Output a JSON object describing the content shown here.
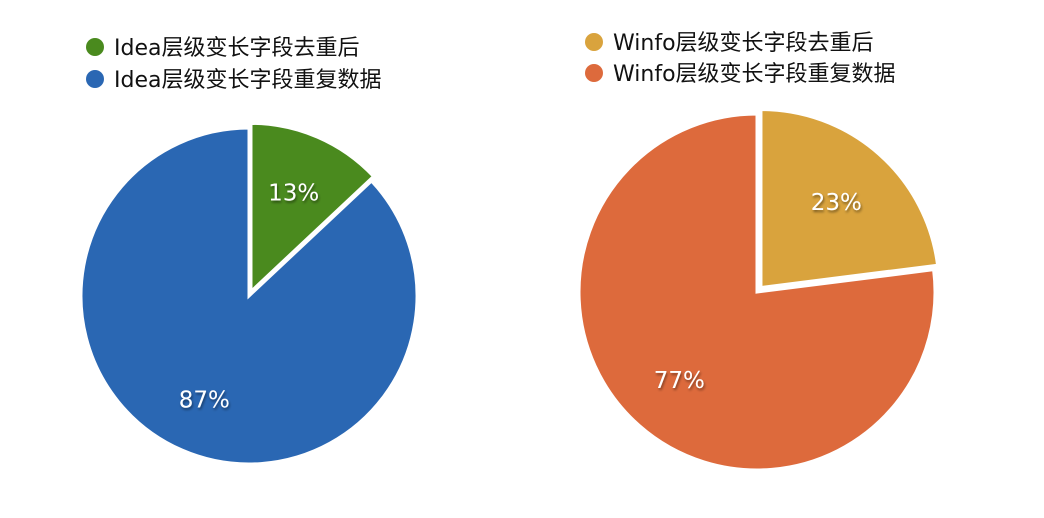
{
  "chart_data": [
    {
      "type": "pie",
      "start_angle_deg": 0,
      "direction": "clockwise",
      "exploded_slice": 0,
      "series": [
        {
          "name": "Idea层级变长字段去重后",
          "value": 13,
          "label": "13%",
          "color": "#4a8a1e"
        },
        {
          "name": "Idea层级变长字段重复数据",
          "value": 87,
          "label": "87%",
          "color": "#2a67b3"
        }
      ]
    },
    {
      "type": "pie",
      "start_angle_deg": 0,
      "direction": "clockwise",
      "exploded_slice": 0,
      "series": [
        {
          "name": "Winfo层级变长字段去重后",
          "value": 23,
          "label": "23%",
          "color": "#d9a33d"
        },
        {
          "name": "Winfo层级变长字段重复数据",
          "value": 77,
          "label": "77%",
          "color": "#dd6a3c"
        }
      ]
    }
  ]
}
